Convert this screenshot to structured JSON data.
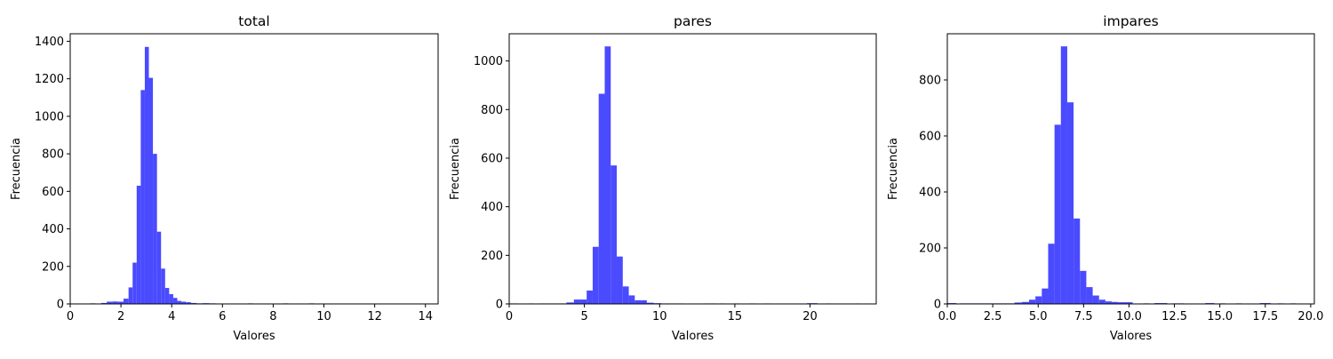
{
  "chart_data": [
    {
      "type": "bar",
      "title": "total",
      "xlabel": "Valores",
      "ylabel": "Frecuencia",
      "xlim": [
        0,
        14.5
      ],
      "ylim": [
        0,
        1440
      ],
      "xticks": [
        0,
        2,
        4,
        6,
        8,
        10,
        12,
        14
      ],
      "yticks": [
        0,
        200,
        400,
        600,
        800,
        1000,
        1200,
        1400
      ],
      "bins": {
        "x0": [
          0.55,
          0.78,
          1.0,
          1.22,
          1.44,
          1.66,
          1.88,
          2.1,
          2.3,
          2.46,
          2.62,
          2.78,
          2.94,
          3.1,
          3.26,
          3.42,
          3.58,
          3.74,
          3.9,
          4.06,
          4.22,
          4.38,
          4.56,
          4.76,
          4.98,
          5.22,
          5.48,
          5.74,
          6.0,
          7.0,
          8.4,
          9.4
        ],
        "x1": [
          0.78,
          1.0,
          1.22,
          1.44,
          1.66,
          1.88,
          2.1,
          2.3,
          2.46,
          2.62,
          2.78,
          2.94,
          3.1,
          3.26,
          3.42,
          3.58,
          3.74,
          3.9,
          4.06,
          4.22,
          4.38,
          4.56,
          4.76,
          4.98,
          5.22,
          5.48,
          5.74,
          6.0,
          6.2,
          7.2,
          8.6,
          9.6
        ],
        "values": [
          2,
          3,
          2,
          5,
          12,
          13,
          12,
          28,
          88,
          220,
          630,
          1140,
          1370,
          1205,
          800,
          385,
          188,
          85,
          52,
          32,
          16,
          12,
          9,
          5,
          3,
          4,
          3,
          2,
          2,
          3,
          3,
          3
        ]
      },
      "color": "#4a4aff"
    },
    {
      "type": "bar",
      "title": "pares",
      "xlabel": "Valores",
      "ylabel": "Frecuencia",
      "xlim": [
        0,
        24.4
      ],
      "ylim": [
        0,
        1112
      ],
      "xticks": [
        0,
        5,
        10,
        15,
        20
      ],
      "yticks": [
        0,
        200,
        400,
        600,
        800,
        1000
      ],
      "bins": {
        "x0": [
          0.0,
          1.3,
          2.0,
          3.8,
          4.3,
          4.7,
          5.15,
          5.55,
          5.95,
          6.35,
          6.75,
          7.15,
          7.55,
          7.95,
          8.35,
          8.75,
          9.15,
          9.6,
          10.1,
          13.0,
          14.0,
          15.0,
          16.0,
          17.0,
          19.8,
          21.1,
          23.0
        ],
        "x1": [
          0.6,
          1.6,
          3.8,
          4.3,
          4.7,
          5.15,
          5.55,
          5.95,
          6.35,
          6.75,
          7.15,
          7.55,
          7.95,
          8.35,
          8.75,
          9.15,
          9.6,
          10.1,
          11.6,
          13.8,
          14.3,
          15.3,
          16.3,
          17.3,
          20.5,
          21.4,
          23.3
        ],
        "values": [
          2,
          2,
          2,
          6,
          18,
          18,
          55,
          235,
          865,
          1060,
          570,
          195,
          72,
          35,
          15,
          15,
          5,
          3,
          2,
          2,
          2,
          2,
          2,
          2,
          3,
          2,
          2
        ]
      },
      "color": "#4a4aff"
    },
    {
      "type": "bar",
      "title": "impares",
      "xlabel": "Valores",
      "ylabel": "Frecuencia",
      "xlim": [
        0,
        20.2
      ],
      "ylim": [
        0,
        965
      ],
      "xticks": [
        0.0,
        2.5,
        5.0,
        7.5,
        10.0,
        12.5,
        15.0,
        17.5,
        20.0
      ],
      "xtick_labels": [
        "0.0",
        "2.5",
        "5.0",
        "7.5",
        "10.0",
        "12.5",
        "15.0",
        "17.5",
        "20.0"
      ],
      "yticks": [
        0,
        200,
        400,
        600,
        800
      ],
      "bins": {
        "x0": [
          0.0,
          0.7,
          2.0,
          3.7,
          4.1,
          4.5,
          4.85,
          5.2,
          5.55,
          5.9,
          6.25,
          6.6,
          6.95,
          7.3,
          7.65,
          8.0,
          8.35,
          8.7,
          9.05,
          9.4,
          10.8,
          11.4,
          12.4,
          14.2,
          15.0,
          15.9,
          17.2,
          18.2,
          18.9
        ],
        "x1": [
          0.5,
          2.0,
          3.7,
          4.1,
          4.5,
          4.85,
          5.2,
          5.55,
          5.9,
          6.25,
          6.6,
          6.95,
          7.3,
          7.65,
          8.0,
          8.35,
          8.7,
          9.05,
          9.4,
          10.2,
          11.1,
          12.1,
          13.0,
          14.7,
          15.3,
          16.2,
          17.8,
          18.5,
          19.2
        ],
        "values": [
          3,
          2,
          2,
          5,
          7,
          15,
          27,
          55,
          215,
          640,
          920,
          720,
          305,
          118,
          60,
          30,
          15,
          9,
          7,
          6,
          2,
          3,
          2,
          3,
          2,
          2,
          3,
          2,
          2
        ]
      },
      "color": "#4a4aff"
    }
  ]
}
